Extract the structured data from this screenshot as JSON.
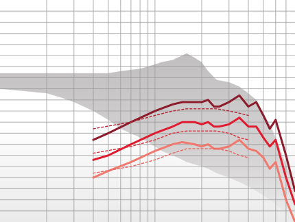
{
  "chart_data": {
    "type": "line",
    "title": "",
    "xlabel": "",
    "ylabel": "",
    "x_scale": "log",
    "xlim": [
      100,
      8000
    ],
    "ylim": [
      0,
      100
    ],
    "grid": true,
    "legend": "none",
    "area_envelope": {
      "color": "#c8c6c6",
      "x": [
        100,
        200,
        250,
        300,
        400,
        500,
        600,
        800,
        1000,
        1100,
        1300,
        1500,
        1600,
        1800,
        2000,
        2200,
        2500,
        3000,
        3500,
        4000,
        4500,
        5000,
        5500,
        6000,
        7000,
        8000
      ],
      "upper": [
        67,
        67,
        67,
        67,
        67,
        67,
        68,
        69,
        71,
        72,
        73,
        75,
        76,
        74,
        72,
        68,
        64,
        63,
        61,
        58,
        55,
        49,
        44,
        38,
        26,
        16
      ],
      "lower": [
        60,
        58,
        56,
        54,
        50,
        46,
        42,
        38,
        34,
        32,
        30,
        28,
        27,
        26,
        25,
        24,
        22,
        20,
        18,
        16,
        14,
        12,
        10,
        8,
        4,
        0
      ]
    },
    "series": [
      {
        "color": "#8b1a2a",
        "x": [
          400,
          500,
          700,
          1000,
          1300,
          1500,
          1800,
          2000,
          2200,
          2400,
          2600,
          3000,
          3500,
          4000,
          4500,
          5000,
          5500,
          6000,
          7000,
          8000
        ],
        "values": [
          37,
          40,
          45,
          50,
          53,
          54,
          54,
          54,
          55,
          52,
          52,
          54,
          57,
          52,
          54,
          48,
          42,
          46,
          30,
          14
        ]
      },
      {
        "color": "#e01b2f",
        "x": [
          400,
          500,
          700,
          1000,
          1300,
          1500,
          1800,
          2000,
          2200,
          2400,
          2600,
          3000,
          3500,
          4000,
          4500,
          5000,
          5500,
          6000,
          7000,
          8000
        ],
        "values": [
          28,
          30,
          35,
          40,
          43,
          45,
          45,
          44,
          45,
          43,
          43,
          44,
          47,
          43,
          43,
          38,
          34,
          37,
          20,
          8
        ]
      },
      {
        "color": "#f0786d",
        "x": [
          400,
          500,
          700,
          1000,
          1300,
          1500,
          1800,
          2000,
          2200,
          2400,
          2600,
          3000,
          3500,
          4000,
          4500,
          5000,
          5500,
          6000,
          7000,
          8000
        ],
        "values": [
          20,
          23,
          27,
          32,
          35,
          36,
          35,
          34,
          35,
          33,
          33,
          34,
          37,
          33,
          32,
          29,
          24,
          27,
          10,
          0
        ]
      },
      {
        "color": "#b3222f",
        "dashed": true,
        "x": [
          400,
          700,
          1000,
          1300,
          1600,
          2000,
          2500,
          3000,
          3500,
          4000
        ],
        "values": [
          42,
          45,
          48,
          50,
          51,
          51,
          51,
          50,
          49,
          48
        ]
      },
      {
        "color": "#d92f3b",
        "dashed": true,
        "x": [
          400,
          700,
          1000,
          1300,
          1600,
          2000,
          2500,
          3000,
          3500,
          4000
        ],
        "values": [
          31,
          34,
          37,
          40,
          41,
          41,
          41,
          40,
          38,
          37
        ]
      },
      {
        "color": "#e96462",
        "dashed": true,
        "x": [
          400,
          700,
          1000,
          1300,
          1600,
          2000,
          2500,
          3000,
          3500,
          4000
        ],
        "values": [
          22,
          25,
          28,
          31,
          33,
          33,
          33,
          32,
          30,
          29
        ]
      }
    ]
  }
}
